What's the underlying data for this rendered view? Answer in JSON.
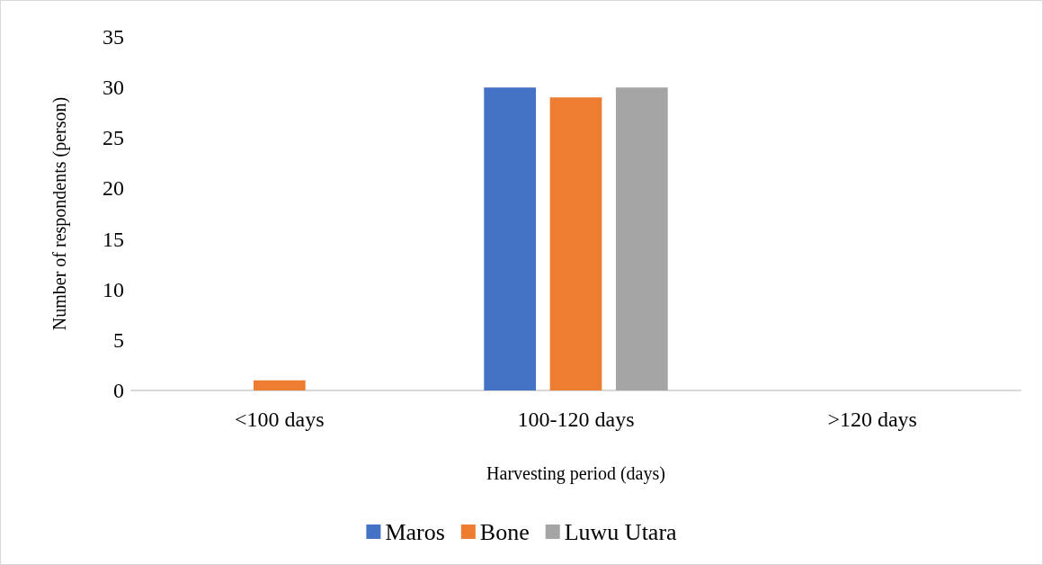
{
  "chart_data": {
    "type": "bar",
    "xlabel": "Harvesting period (days)",
    "ylabel": "Number of respondents (person)",
    "categories": [
      "<100 days",
      "100-120 days",
      ">120 days"
    ],
    "series": [
      {
        "name": "Maros",
        "color": "#4472c4",
        "values": [
          0,
          30,
          0
        ]
      },
      {
        "name": "Bone",
        "color": "#ed7d31",
        "values": [
          1,
          29,
          0
        ]
      },
      {
        "name": "Luwu Utara",
        "color": "#a5a5a5",
        "values": [
          0,
          30,
          0
        ]
      }
    ],
    "ylim": [
      0,
      35
    ],
    "yticks": [
      0,
      5,
      10,
      15,
      20,
      25,
      30,
      35
    ],
    "grid": false,
    "legend": "bottom"
  }
}
